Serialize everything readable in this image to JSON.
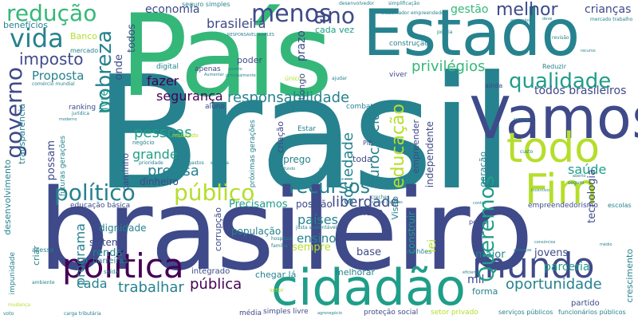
{
  "palette": {
    "dark_purple": "#440154",
    "indigo": "#3e4a89",
    "blue": "#31688e",
    "teal": "#26828e",
    "teal_green": "#1f9e89",
    "green": "#35b779",
    "light_green": "#6ece58",
    "lime": "#b5de2b",
    "yellow": "#fde725"
  },
  "words": {
    "brasil": "Brasil",
    "brasileiro": "brasileiro",
    "pais": "País",
    "estado": "Estado",
    "vamos": "Vamos",
    "todo": "todo",
    "cidadao": "cidadão",
    "politica": "política",
    "mundo": "mundo",
    "fim": "Fim",
    "qualidade": "qualidade",
    "governo": "governo",
    "pobreza": "pobreza",
    "menos": "menos",
    "ano": "ano",
    "vida": "vida",
    "reducao": "redução",
    "melhor": "melhor",
    "publico": "público",
    "politico": "político",
    "recursos": "recursos",
    "queremos": "Queremos",
    "educacao": "educação",
    "responsabilidade": "responsabilidade",
    "imposto": "imposto",
    "brasileira": "brasileira",
    "seguranca": "segurança",
    "pessoas": "pessoas",
    "precisa": "precisa",
    "grande": "grande",
    "fazer": "fazer",
    "proposta": "Proposta",
    "liberdade": "liberdade",
    "oportunidade": "oportunidade",
    "trabalhar": "trabalhar",
    "publica": "pública",
    "cada": "cada",
    "privilegios": "privilégios",
    "todos_brasileiros": "todos brasileiros",
    "burocracia": "burocracia",
    "sociedade": "sociedade",
    "economia": "economia",
    "gestao": "gestão",
    "criancas": "crianças",
    "saude": "saúde",
    "parceria": "parceria",
    "mil": "mil",
    "paises": "países",
    "ensino": "ensino",
    "programa": "programa",
    "possam": "possam",
    "renda": "renda",
    "posicao": "posição",
    "precisamos": "Precisamos",
    "sempre": "sempre",
    "base": "base",
    "jovens": "jovens",
    "lei": "lei",
    "novo": "novo",
    "maior": "maior",
    "caminho": "caminho",
    "emprego": "emprego",
    "dinheiro": "dinheiro",
    "populacao": "população",
    "dignidade": "dignidade",
    "sistema": "sistema",
    "barreiras": "barreiras",
    "integrado": "integrado",
    "chegar_la": "chegar lá",
    "melhorar": "melhorar",
    "forma": "forma",
    "partido": "partido",
    "tecnologia": "tecnologia",
    "crescimento": "crescimento",
    "desenvolvimento": "desenvolvimento",
    "transparencia": "transparência",
    "beneficios": "benefícios",
    "banco": "Banco",
    "mercado": "mercado",
    "livre": "livre",
    "onde": "onde",
    "todos": "todos",
    "cada_vez": "cada vez",
    "prazo": "prazo",
    "longo": "Longo",
    "poder": "poder",
    "toda": "toda",
    "criacao": "criação",
    "independente": "independente",
    "empreender": "empreender",
    "geracao": "geração",
    "visao": "Visão",
    "construir": "construir",
    "ranking": "ranking",
    "digital": "digital",
    "criar": "criar",
    "corrupcao": "corrupção",
    "impunidade": "impunidade",
    "educacao_basica": "educação básica",
    "simples_livre": "simples livre",
    "setor_privado": "setor privado",
    "protecao_social": "proteção social",
    "servicos_publicos": "serviços públicos",
    "funcionarios_publicos": "funcionários públicos",
    "empreendedorismo": "empreendedorismo",
    "escolas": "escolas",
    "acesso": "acesso",
    "combate": "combate",
    "estar": "Estar",
    "aluno": "aluno",
    "media": "média",
    "apenas": "apenas",
    "proximas_geracoes": "próximas gerações",
    "futuras_geracoes": "futuras gerações",
    "pib": "PIB",
    "pobre": "pobre",
    "milhoes": "milhões",
    "reduzir": "Reduzir",
    "ainda": "ainda",
    "viver": "viver",
    "desenvolvedor": "desenvolvedor",
    "seguro_simples": "seguro simples",
    "simplificacao": "simplificação",
    "mercado_trabalho": "mercado trabalho",
    "responsavel_simples": "RESPONSAVEL SIMPLES",
    "construcao": "construção",
    "policia": "policia",
    "saida": "saída",
    "ambiente": "ambiente",
    "mudanca": "mudança",
    "voto": "voto",
    "setor": "setor",
    "agronegocio": "agronegócio",
    "comercio_mundial": "comércio mundial",
    "juridica": "jurídica",
    "resultado": "resultado",
    "negocio": "negócio",
    "prioridade": "prioridade",
    "gastos": "gastos",
    "escolha": "escolha",
    "hospitais": "hospitais",
    "familia": "família",
    "justa_sustentavel": "justa sustentável",
    "moderno": "moderno",
    "deve": "deve",
    "custo": "custo",
    "seguro": "seguro",
    "contra": "contra",
    "medio": "médio",
    "creches": "creches",
    "contas_publicas": "contas públicas",
    "eficiente": "eficiente",
    "incentivo": "incentivo",
    "aberto": "aberto",
    "ajudar": "ajudar",
    "unico": "único",
    "sucesso": "sucesso",
    "recurso": "recurso",
    "trabalhador_empreendedor": "trabalhador empreendedor",
    "carga_tributaria": "carga tributária",
    "autonomia": "autonomia",
    "consorcios": "consórcios",
    "ameacas": "ameaças",
    "fundo": "fundo",
    "revisao": "revisão",
    "avaliacao": "avaliação",
    "principalmente": "principalmente",
    "quadro": "quadro",
    "aumentar": "Aumentar"
  }
}
